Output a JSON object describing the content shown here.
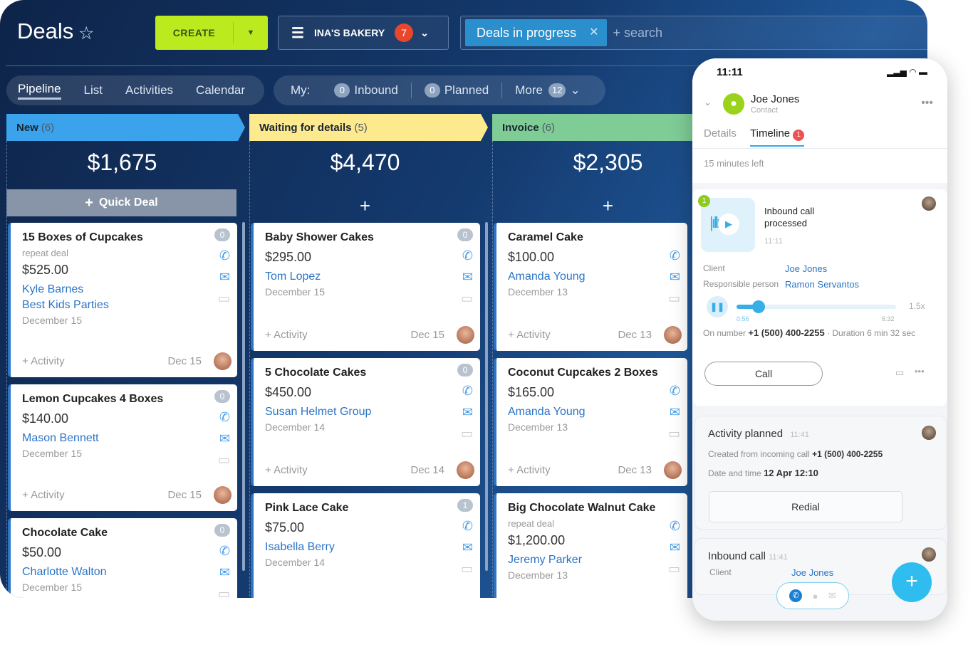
{
  "header": {
    "title": "Deals",
    "create_label": "CREATE",
    "filter_label": "INA'S BAKERY",
    "filter_count": "7",
    "search_chip": "Deals in progress",
    "search_placeholder": "+ search"
  },
  "nav": {
    "tabs": [
      "Pipeline",
      "List",
      "Activities",
      "Calendar"
    ],
    "my_label": "My:",
    "inbound_count": "0",
    "inbound_label": "Inbound",
    "planned_count": "0",
    "planned_label": "Planned",
    "more_label": "More",
    "more_count": "12"
  },
  "quick_deal": "Quick Deal",
  "colors": {
    "new": "#3aa3ec",
    "waiting": "#fde98e",
    "invoice": "#7fcc96",
    "create": "#bbeb1f",
    "accent": "#2b74c6"
  },
  "columns": [
    {
      "name": "New",
      "count": "(6)",
      "sum": "$1,675",
      "cards": [
        {
          "title": "15 Boxes of Cupcakes",
          "sub": "repeat deal",
          "price": "$525.00",
          "contacts": [
            "Kyle Barnes",
            "Best Kids Parties"
          ],
          "date": "December 15",
          "count": "0",
          "activity": "+ Activity",
          "due": "Dec 15"
        },
        {
          "title": "Lemon Cupcakes 4 Boxes",
          "price": "$140.00",
          "contacts": [
            "Mason Bennett"
          ],
          "date": "December 15",
          "count": "0",
          "activity": "+ Activity",
          "due": "Dec 15"
        },
        {
          "title": "Chocolate Cake",
          "price": "$50.00",
          "contacts": [
            "Charlotte Walton"
          ],
          "date": "December 15",
          "count": "0"
        }
      ]
    },
    {
      "name": "Waiting for details",
      "count": "(5)",
      "sum": "$4,470",
      "cards": [
        {
          "title": "Baby Shower Cakes",
          "price": "$295.00",
          "contacts": [
            "Tom Lopez"
          ],
          "date": "December 15",
          "count": "0",
          "activity": "+ Activity",
          "due": "Dec 15"
        },
        {
          "title": "5 Chocolate Cakes",
          "price": "$450.00",
          "contacts": [
            "Susan Helmet Group"
          ],
          "date": "December 14",
          "count": "0",
          "activity": "+ Activity",
          "due": "Dec 14"
        },
        {
          "title": "Pink Lace Cake",
          "price": "$75.00",
          "contacts": [
            "Isabella Berry"
          ],
          "date": "December 14",
          "count": "1"
        }
      ]
    },
    {
      "name": "Invoice",
      "count": "(6)",
      "sum": "$2,305",
      "cards": [
        {
          "title": "Caramel Cake",
          "price": "$100.00",
          "contacts": [
            "Amanda Young"
          ],
          "date": "December 13",
          "activity": "+ Activity",
          "due": "Dec 13"
        },
        {
          "title": "Coconut Cupcakes 2 Boxes",
          "price": "$165.00",
          "contacts": [
            "Amanda Young"
          ],
          "date": "December 13",
          "activity": "+ Activity",
          "due": "Dec 13"
        },
        {
          "title": "Big Chocolate Walnut Cake",
          "sub": "repeat deal",
          "price": "$1,200.00",
          "contacts": [
            "Jeremy Parker"
          ],
          "date": "December 13"
        }
      ]
    }
  ],
  "phone": {
    "time": "11:11",
    "contact_name": "Joe Jones",
    "contact_role": "Contact",
    "tabs": [
      "Details",
      "Timeline"
    ],
    "timeline_badge": "1",
    "time_left": "15 minutes left",
    "call": {
      "badge": "1",
      "title": "Inbound call processed",
      "time": "11:11",
      "client_label": "Client",
      "client": "Joe Jones",
      "resp_label": "Responsible person",
      "resp": "Ramon Servantos",
      "elapsed": "0:56",
      "total": "6:32",
      "speed": "1.5x",
      "progress": 0.14,
      "on_number_label": "On number",
      "number": "+1 (500) 400-2255",
      "duration": "· Duration 6 min 32 sec",
      "call_button": "Call"
    },
    "planned": {
      "title": "Activity planned",
      "time": "11:41",
      "created_label": "Created from incoming call",
      "number": "+1 (500) 400-2255",
      "date_label": "Date and time",
      "date": "12 Apr 12:10",
      "redial": "Redial"
    },
    "inbound": {
      "title": "Inbound call",
      "time": "11:41",
      "client_label": "Client",
      "client": "Joe Jones"
    }
  }
}
